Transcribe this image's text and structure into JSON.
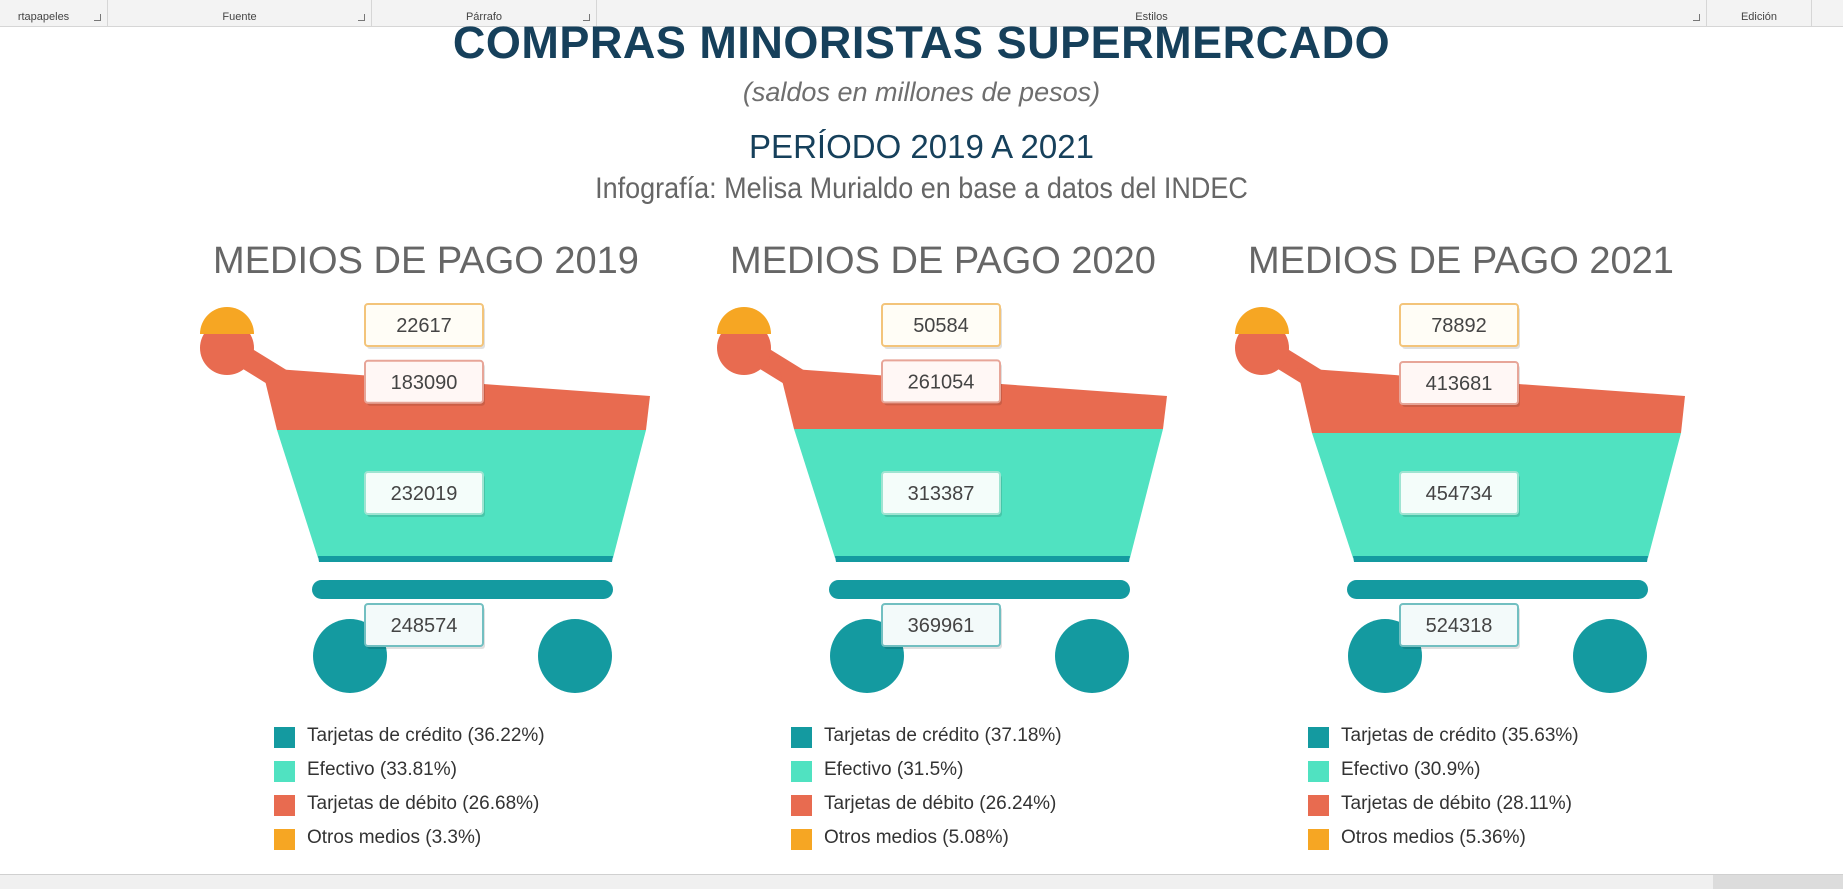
{
  "ribbon": {
    "groups": [
      "rtapapeles",
      "Fuente",
      "Párrafo",
      "Estilos",
      "Edición"
    ]
  },
  "header": {
    "title": "COMPRAS MINORISTAS SUPERMERCADO",
    "subtitle": "(saldos en millones de pesos)",
    "period": "PERÍODO 2019 A 2021",
    "credit": "Infografía: Melisa Murialdo en base a datos del INDEC"
  },
  "colors": {
    "credito": "#149aa0",
    "efectivo": "#50e2c1",
    "debito": "#e86b50",
    "otros": "#f6a623",
    "text_dark": "#16405b"
  },
  "chart_data": [
    {
      "type": "bar",
      "title": "MEDIOS DE PAGO 2019",
      "categories": [
        "Tarjetas de crédito",
        "Efectivo",
        "Tarjetas de débito",
        "Otros medios"
      ],
      "values": [
        248574,
        232019,
        183090,
        22617
      ],
      "value_labels": [
        "248574",
        "232019",
        "183090",
        "22617"
      ],
      "percentages": [
        36.22,
        33.81,
        26.68,
        3.3
      ],
      "legend": [
        "Tarjetas de crédito (36.22%)",
        "Efectivo (33.81%)",
        "Tarjetas de débito (26.68%)",
        "Otros medios (3.3%)"
      ]
    },
    {
      "type": "bar",
      "title": "MEDIOS DE PAGO 2020",
      "categories": [
        "Tarjetas de crédito",
        "Efectivo",
        "Tarjetas de débito",
        "Otros medios"
      ],
      "values": [
        369961,
        313387,
        261054,
        50584
      ],
      "value_labels": [
        "369961",
        "313387",
        "261054",
        "50584"
      ],
      "percentages": [
        37.18,
        31.5,
        26.24,
        5.08
      ],
      "legend": [
        "Tarjetas de crédito (37.18%)",
        "Efectivo (31.5%)",
        "Tarjetas de débito (26.24%)",
        "Otros medios (5.08%)"
      ]
    },
    {
      "type": "bar",
      "title": "MEDIOS DE PAGO 2021",
      "categories": [
        "Tarjetas de crédito",
        "Efectivo",
        "Tarjetas de débito",
        "Otros medios"
      ],
      "values": [
        524318,
        454734,
        413681,
        78892
      ],
      "value_labels": [
        "524318",
        "454734",
        "413681",
        "78892"
      ],
      "percentages": [
        35.63,
        30.9,
        28.11,
        5.36
      ],
      "legend": [
        "Tarjetas de crédito (35.63%)",
        "Efectivo (30.9%)",
        "Tarjetas de débito (28.11%)",
        "Otros medios (5.36%)"
      ]
    }
  ]
}
